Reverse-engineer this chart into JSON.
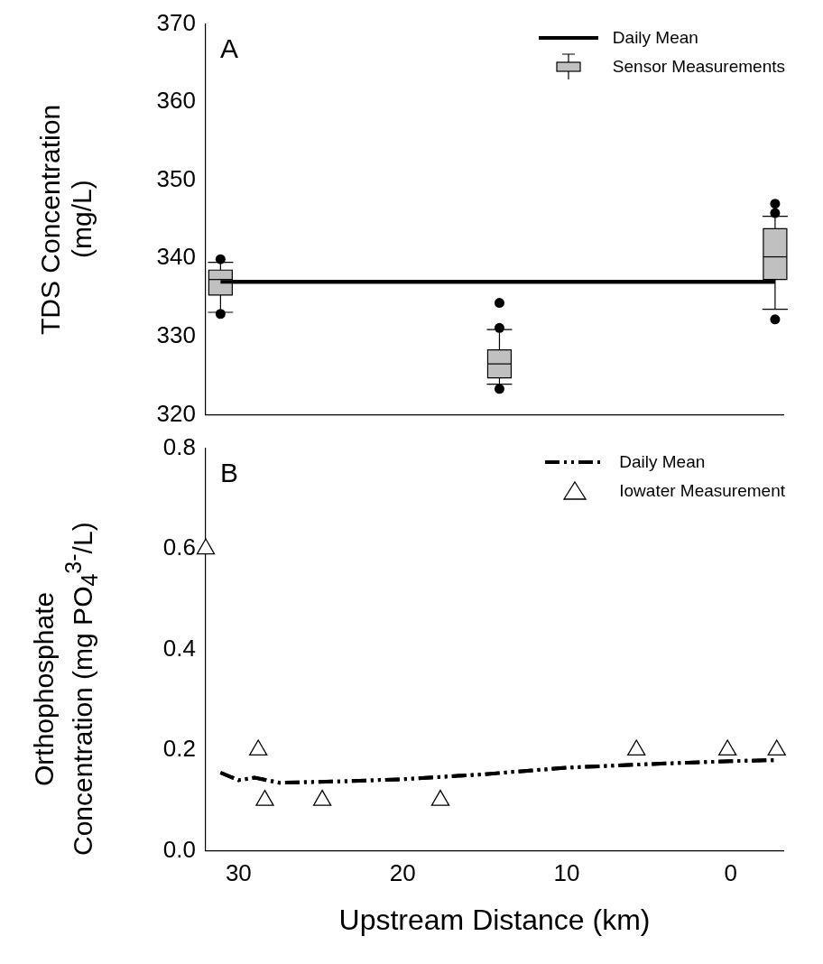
{
  "chart_data": [
    {
      "type": "box",
      "ylabel": "TDS Concentration\n(mg/L)",
      "annotations": [
        "A"
      ],
      "xlim": [
        32,
        -3.2
      ],
      "ylim": [
        320,
        370
      ],
      "yticks": [
        320,
        330,
        340,
        350,
        360,
        370
      ],
      "tick_labels": "y",
      "legend": "top right",
      "grid": false,
      "series": [
        {
          "name": "Daily Mean",
          "type": "line",
          "color": "#000000",
          "x": [
            31.1,
            -2.7
          ],
          "values": [
            337,
            337
          ]
        },
        {
          "name": "Sensor Measurements",
          "color": "#c0c0c0",
          "x": [
            31.1,
            14.1,
            -2.7
          ],
          "boxes": [
            {
              "low": 333.1,
              "q1": 335.3,
              "median": 337.3,
              "q3": 338.5,
              "high": 339.5,
              "outliers": [
                339.9,
                332.9
              ]
            },
            {
              "low": 323.9,
              "q1": 324.7,
              "median": 326.5,
              "q3": 328.3,
              "high": 330.9,
              "outliers": [
                334.3,
                331.1,
                323.3
              ]
            },
            {
              "low": 333.5,
              "q1": 337.3,
              "median": 340.2,
              "q3": 343.8,
              "high": 345.4,
              "outliers": [
                347.0,
                345.8,
                332.2
              ]
            }
          ]
        }
      ]
    },
    {
      "type": "scatter",
      "ylabel": "Orthophosphate\nConcentration (mg PO$_{4}$$^{3-}$/L)",
      "xlabel": "Upstream Distance (km)",
      "annotations": [
        "B"
      ],
      "xlim": [
        32,
        -3.2
      ],
      "xticks": [
        30,
        20,
        10,
        0
      ],
      "ylim": [
        0,
        0.8
      ],
      "yticks": [
        {
          "value": 0,
          "label": "0.0"
        },
        0.2,
        0.4,
        0.6,
        0.8
      ],
      "legend": "top right",
      "grid": false,
      "series": [
        {
          "name": "Daily Mean",
          "type": "line",
          "line_style": "dashed",
          "marker": "none",
          "color": "#000000",
          "x": [
            31.1,
            30.0,
            29.0,
            27.5,
            26.0,
            23.5,
            20.0,
            15.0,
            10.0,
            5.0,
            0.0,
            -2.7
          ],
          "values": [
            0.155,
            0.14,
            0.145,
            0.135,
            0.136,
            0.138,
            0.142,
            0.152,
            0.165,
            0.172,
            0.178,
            0.18
          ]
        },
        {
          "name": "Iowater Measurement",
          "marker": "triangle",
          "color": "#000000",
          "x": [
            32.0,
            28.8,
            28.4,
            24.9,
            17.7,
            5.75,
            0.2,
            -2.8
          ],
          "values": [
            0.6,
            0.2,
            0.1,
            0.1,
            0.1,
            0.2,
            0.2,
            0.2
          ]
        }
      ]
    }
  ]
}
